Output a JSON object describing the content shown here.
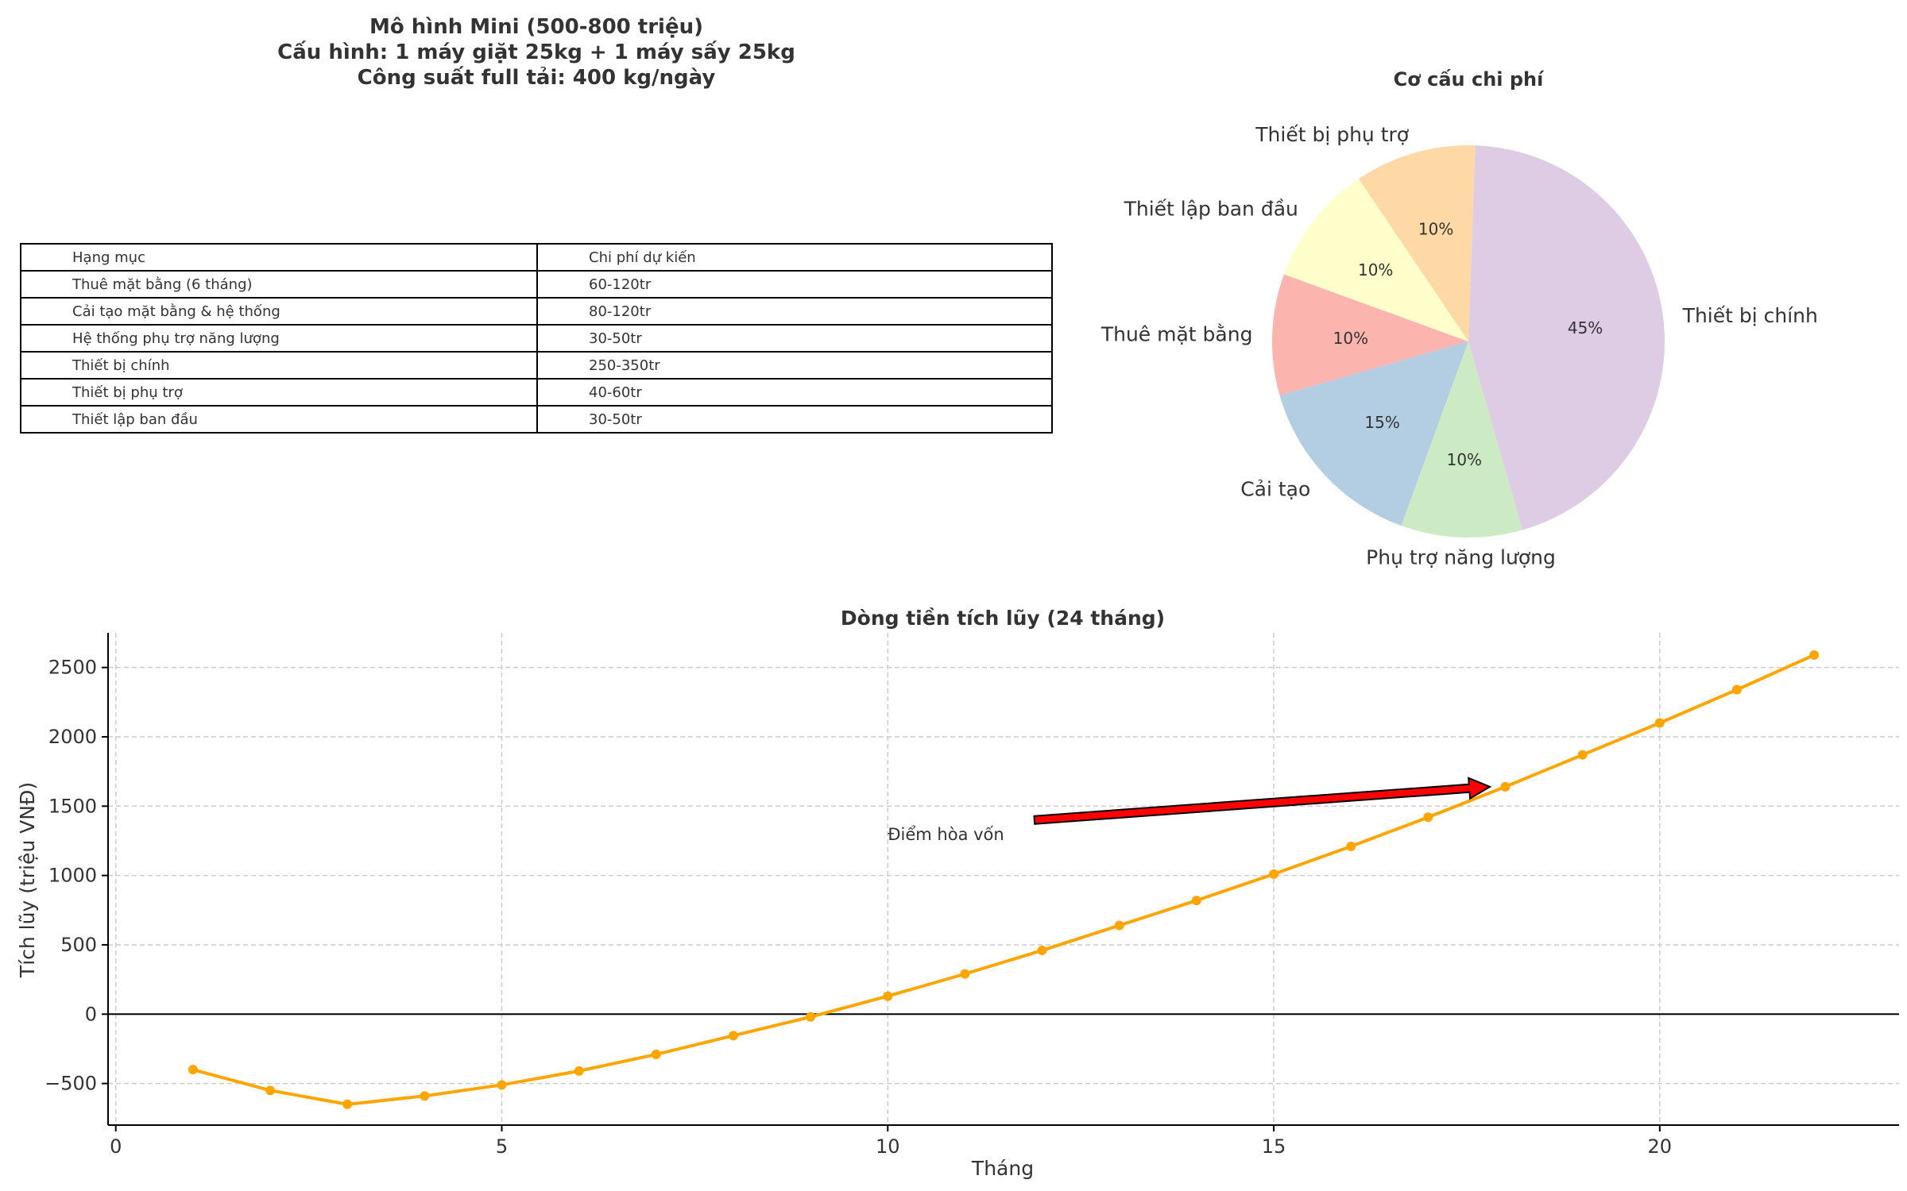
{
  "header": {
    "line1": "Mô hình Mini (500-800 triệu)",
    "line2": "Cấu hình: 1 máy giặt 25kg + 1 máy sấy 25kg",
    "line3": "Công suất full tải: 400 kg/ngày"
  },
  "table": {
    "columns": [
      "Hạng mục",
      "Chi phí dự kiến"
    ],
    "rows": [
      [
        "Thuê mặt bằng (6 tháng)",
        "60-120tr"
      ],
      [
        "Cải tạo mặt bằng & hệ thống",
        "80-120tr"
      ],
      [
        "Hệ thống phụ trợ năng lượng",
        "30-50tr"
      ],
      [
        "Thiết bị chính",
        "250-350tr"
      ],
      [
        "Thiết bị phụ trợ",
        "40-60tr"
      ],
      [
        "Thiết lập ban đầu",
        "30-50tr"
      ]
    ]
  },
  "chart_data": [
    {
      "type": "pie",
      "title": "Cơ cấu chi phí",
      "labels": [
        "Thuê mặt bằng",
        "Cải tạo",
        "Phụ trợ năng lượng",
        "Thiết bị chính",
        "Thiết bị phụ trợ",
        "Thiết lập ban đầu"
      ],
      "values": [
        10,
        15,
        10,
        45,
        10,
        10
      ],
      "value_labels": [
        "10%",
        "15%",
        "10%",
        "45%",
        "10%",
        "10%"
      ],
      "colors": [
        "#fbb4ae",
        "#b3cde3",
        "#ccebc5",
        "#decbe4",
        "#fed9a6",
        "#ffffcc"
      ],
      "start_angle_deg": 160,
      "direction": "counterclockwise"
    },
    {
      "type": "line",
      "title": "Dòng tiền tích lũy (24 tháng)",
      "xlabel": "Tháng",
      "ylabel": "Tích lũy (triệu VNĐ)",
      "x": [
        1,
        2,
        3,
        4,
        5,
        6,
        7,
        8,
        9,
        10,
        11,
        12,
        13,
        14,
        15,
        16,
        17,
        18,
        19,
        20,
        21,
        22
      ],
      "series": [
        {
          "values": [
            -400,
            -550,
            -650,
            -590,
            -510,
            -410,
            -290,
            -155,
            -20,
            130,
            290,
            460,
            640,
            820,
            1010,
            1210,
            1420,
            1640,
            1870,
            2100,
            2340,
            2590
          ],
          "color": "#ffa500"
        }
      ],
      "xlim": [
        -0.1,
        23.1
      ],
      "ylim": [
        -800,
        2750
      ],
      "xticks": [
        0,
        5,
        10,
        15,
        20
      ],
      "yticks": [
        -500,
        0,
        500,
        1000,
        1500,
        2000,
        2500
      ],
      "ytick_labels": [
        "−500",
        "0",
        "500",
        "1000",
        "1500",
        "2000",
        "2500"
      ],
      "grid": true,
      "zero_line": true,
      "annotation": {
        "text": "Điểm hòa vốn",
        "arrow_tail": [
          11.9,
          1400
        ],
        "arrow_head": [
          17.8,
          1640
        ],
        "text_at": [
          10,
          1300
        ],
        "arrow_color": "#ff0000"
      }
    }
  ]
}
